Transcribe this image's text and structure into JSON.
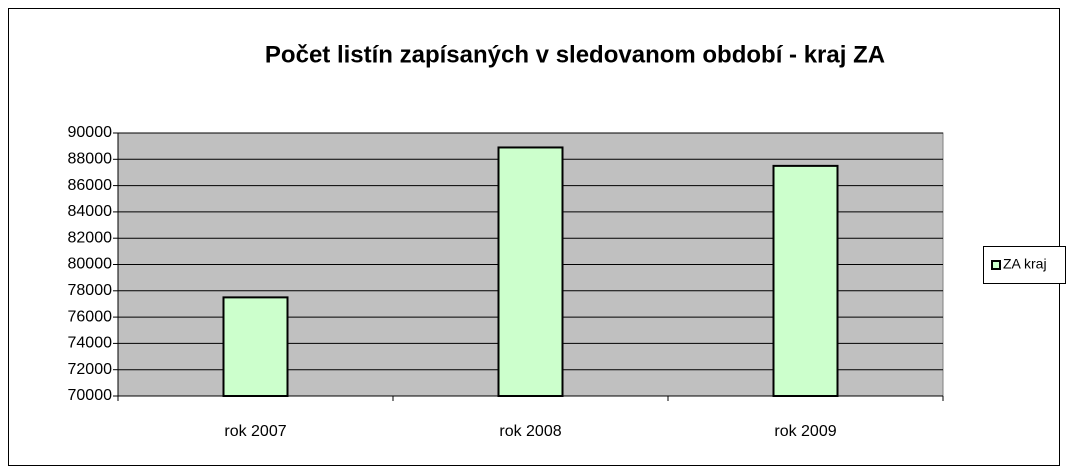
{
  "chart_data": {
    "type": "bar",
    "title": "Počet listín zapísaných v sledovanom období - kraj ZA",
    "categories": [
      "rok 2007",
      "rok 2008",
      "rok 2009"
    ],
    "series": [
      {
        "name": "ZA kraj",
        "color": "#ccffcc",
        "values": [
          77500,
          88900,
          87500
        ]
      }
    ],
    "ylim": [
      70000,
      90000
    ],
    "yticks": [
      70000,
      72000,
      74000,
      76000,
      78000,
      80000,
      82000,
      84000,
      86000,
      88000,
      90000
    ],
    "grid": true,
    "legend": "right",
    "plot_background": "#c0c0c0"
  }
}
